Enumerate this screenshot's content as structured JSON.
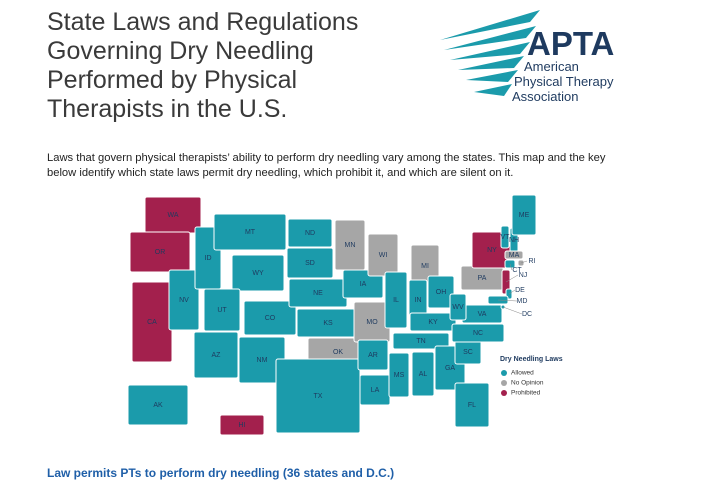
{
  "header": {
    "title": "State Laws and Regulations Governing Dry Needling Performed by Physical Therapists in the U.S.",
    "logo": {
      "abbr": "APTA",
      "name_lines": [
        "American",
        "Physical Therapy",
        "Association"
      ]
    }
  },
  "intro": "Laws that govern physical therapists’ ability to perform dry needling vary among the states. This map and the key below identify which state laws permit dry needling, which prohibit it, and which are silent on it.",
  "map": {
    "legend": {
      "title": "Dry Needling Laws",
      "items": [
        {
          "label": "Allowed",
          "color": "#1b9bab"
        },
        {
          "label": "No Opinion",
          "color": "#a6a6a6"
        },
        {
          "label": "Prohibited",
          "color": "#a3204d"
        }
      ]
    },
    "states": [
      {
        "label": "WA",
        "status": 2
      },
      {
        "label": "OR",
        "status": 2
      },
      {
        "label": "CA",
        "status": 2
      },
      {
        "label": "NV",
        "status": 0
      },
      {
        "label": "ID",
        "status": 0
      },
      {
        "label": "MT",
        "status": 0
      },
      {
        "label": "WY",
        "status": 0
      },
      {
        "label": "UT",
        "status": 0
      },
      {
        "label": "CO",
        "status": 0
      },
      {
        "label": "AZ",
        "status": 0
      },
      {
        "label": "NM",
        "status": 0
      },
      {
        "label": "ND",
        "status": 0
      },
      {
        "label": "SD",
        "status": 0
      },
      {
        "label": "NE",
        "status": 0
      },
      {
        "label": "KS",
        "status": 0
      },
      {
        "label": "OK",
        "status": 1
      },
      {
        "label": "TX",
        "status": 0
      },
      {
        "label": "MN",
        "status": 1
      },
      {
        "label": "IA",
        "status": 0
      },
      {
        "label": "MO",
        "status": 1
      },
      {
        "label": "AR",
        "status": 0
      },
      {
        "label": "LA",
        "status": 0
      },
      {
        "label": "WI",
        "status": 1
      },
      {
        "label": "IL",
        "status": 0
      },
      {
        "label": "MI",
        "status": 1
      },
      {
        "label": "IN",
        "status": 0
      },
      {
        "label": "OH",
        "status": 0
      },
      {
        "label": "KY",
        "status": 0
      },
      {
        "label": "TN",
        "status": 0
      },
      {
        "label": "MS",
        "status": 0
      },
      {
        "label": "AL",
        "status": 0
      },
      {
        "label": "GA",
        "status": 0
      },
      {
        "label": "FL",
        "status": 0
      },
      {
        "label": "SC",
        "status": 0
      },
      {
        "label": "NC",
        "status": 0
      },
      {
        "label": "VA",
        "status": 0
      },
      {
        "label": "WV",
        "status": 0
      },
      {
        "label": "PA",
        "status": 1
      },
      {
        "label": "NY",
        "status": 2
      },
      {
        "label": "VT",
        "status": 0
      },
      {
        "label": "NH",
        "status": 0
      },
      {
        "label": "ME",
        "status": 0
      },
      {
        "label": "MA",
        "status": 1
      },
      {
        "label": "CT",
        "status": 0
      },
      {
        "label": "RI",
        "status": 1
      },
      {
        "label": "NJ",
        "status": 2
      },
      {
        "label": "DE",
        "status": 0
      },
      {
        "label": "MD",
        "status": 0
      },
      {
        "label": "DC",
        "status": 0
      },
      {
        "label": "AK",
        "status": 0
      },
      {
        "label": "HI",
        "status": 2
      }
    ]
  },
  "section_heading": "Law permits PTs to perform dry needling (36 states and D.C.)"
}
